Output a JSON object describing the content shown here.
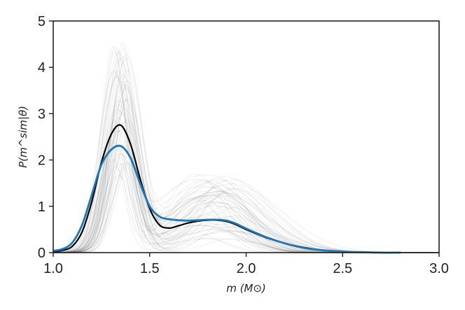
{
  "chart_data": {
    "type": "line",
    "title": "",
    "xlabel": "m (M⊙)",
    "ylabel": "P(m^sim|θ)",
    "xlim": [
      1.0,
      3.0
    ],
    "ylim": [
      0,
      5
    ],
    "x_ticks": [
      "1.0",
      "1.5",
      "2.0",
      "2.5",
      "3.0"
    ],
    "y_ticks": [
      "0",
      "1",
      "2",
      "3",
      "4",
      "5"
    ],
    "grid": false,
    "legend": "none",
    "colors": {
      "black_curve": "#000000",
      "blue_curve": "#1f77b4",
      "sample_curves": "#000000"
    },
    "series": [
      {
        "color": "#000000",
        "x": [
          1.0,
          1.05,
          1.1,
          1.15,
          1.2,
          1.25,
          1.3,
          1.35,
          1.4,
          1.45,
          1.5,
          1.55,
          1.6,
          1.65,
          1.7,
          1.75,
          1.8,
          1.85,
          1.9,
          1.95,
          2.0,
          2.1,
          2.2,
          2.3,
          2.4,
          2.5,
          2.6,
          2.7,
          2.8
        ],
        "y": [
          0.02,
          0.05,
          0.14,
          0.45,
          1.1,
          1.95,
          2.55,
          2.75,
          2.35,
          1.6,
          0.95,
          0.6,
          0.53,
          0.58,
          0.64,
          0.68,
          0.7,
          0.7,
          0.67,
          0.6,
          0.5,
          0.33,
          0.2,
          0.11,
          0.05,
          0.02,
          0.01,
          0.0,
          0.0
        ]
      },
      {
        "color": "#1f77b4",
        "x": [
          1.0,
          1.05,
          1.1,
          1.15,
          1.2,
          1.25,
          1.3,
          1.35,
          1.4,
          1.45,
          1.5,
          1.55,
          1.6,
          1.65,
          1.7,
          1.75,
          1.8,
          1.85,
          1.9,
          1.95,
          2.0,
          2.1,
          2.2,
          2.3,
          2.4,
          2.5,
          2.6,
          2.7,
          2.8
        ],
        "y": [
          0.04,
          0.08,
          0.22,
          0.6,
          1.25,
          1.9,
          2.22,
          2.3,
          2.05,
          1.5,
          1.0,
          0.78,
          0.72,
          0.7,
          0.69,
          0.7,
          0.71,
          0.71,
          0.69,
          0.62,
          0.52,
          0.34,
          0.2,
          0.1,
          0.05,
          0.02,
          0.01,
          0.0,
          0.0
        ]
      }
    ],
    "samples": {
      "count": 60,
      "color": "#000000",
      "opacity": 0.05,
      "peak1_center_range": [
        1.31,
        1.39
      ],
      "peak1_height_range": [
        1.6,
        4.6
      ],
      "peak2_center_range": [
        1.72,
        1.95
      ],
      "peak2_height_range": [
        0.3,
        1.7
      ]
    }
  }
}
